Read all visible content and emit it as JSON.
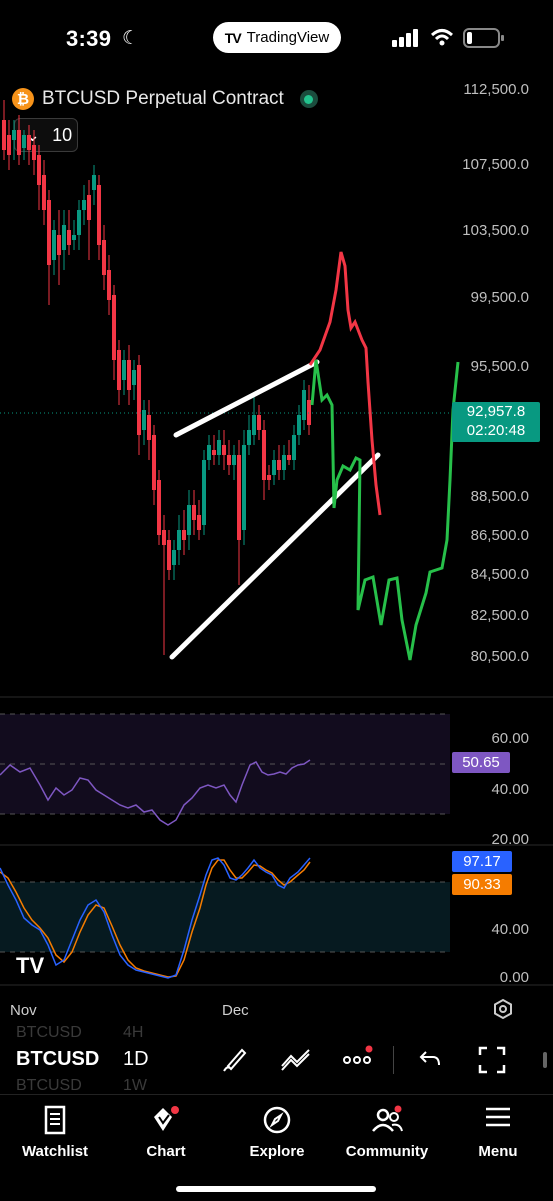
{
  "status_bar": {
    "time": "3:39",
    "app_pill": "TradingView"
  },
  "header": {
    "symbol_title": "BTCUSD Perpetual Contract",
    "collapse_count": "10"
  },
  "price_axis": [
    "112,500.0",
    "107,500.0",
    "103,500.0",
    "99,500.0",
    "95,500.0",
    "88,500.0",
    "86,500.0",
    "84,500.0",
    "82,500.0",
    "80,500.0"
  ],
  "current_price": {
    "price": "92,957.8",
    "countdown": "02:20:48"
  },
  "rsi": {
    "axis": [
      "60.00",
      "40.00",
      "20.00"
    ],
    "value": "50.65"
  },
  "stoch": {
    "axis": [
      "40.00",
      "0.00"
    ],
    "k_value": "97.17",
    "d_value": "90.33"
  },
  "time_axis": {
    "nov": "Nov",
    "dec": "Dec"
  },
  "toolbar": {
    "symbol": "BTCUSD",
    "ghost_1": "BTCUSD",
    "ghost_2": "BTCUSD",
    "timeframe": "1D",
    "ghost_tf_1": "4H",
    "ghost_tf_2": "1W"
  },
  "nav": {
    "watchlist": "Watchlist",
    "chart": "Chart",
    "explore": "Explore",
    "community": "Community",
    "menu": "Menu"
  },
  "colors": {
    "up": "#089981",
    "down": "#f23645",
    "rsi": "#7e57c2",
    "k": "#2962ff",
    "d": "#f57c00"
  }
}
